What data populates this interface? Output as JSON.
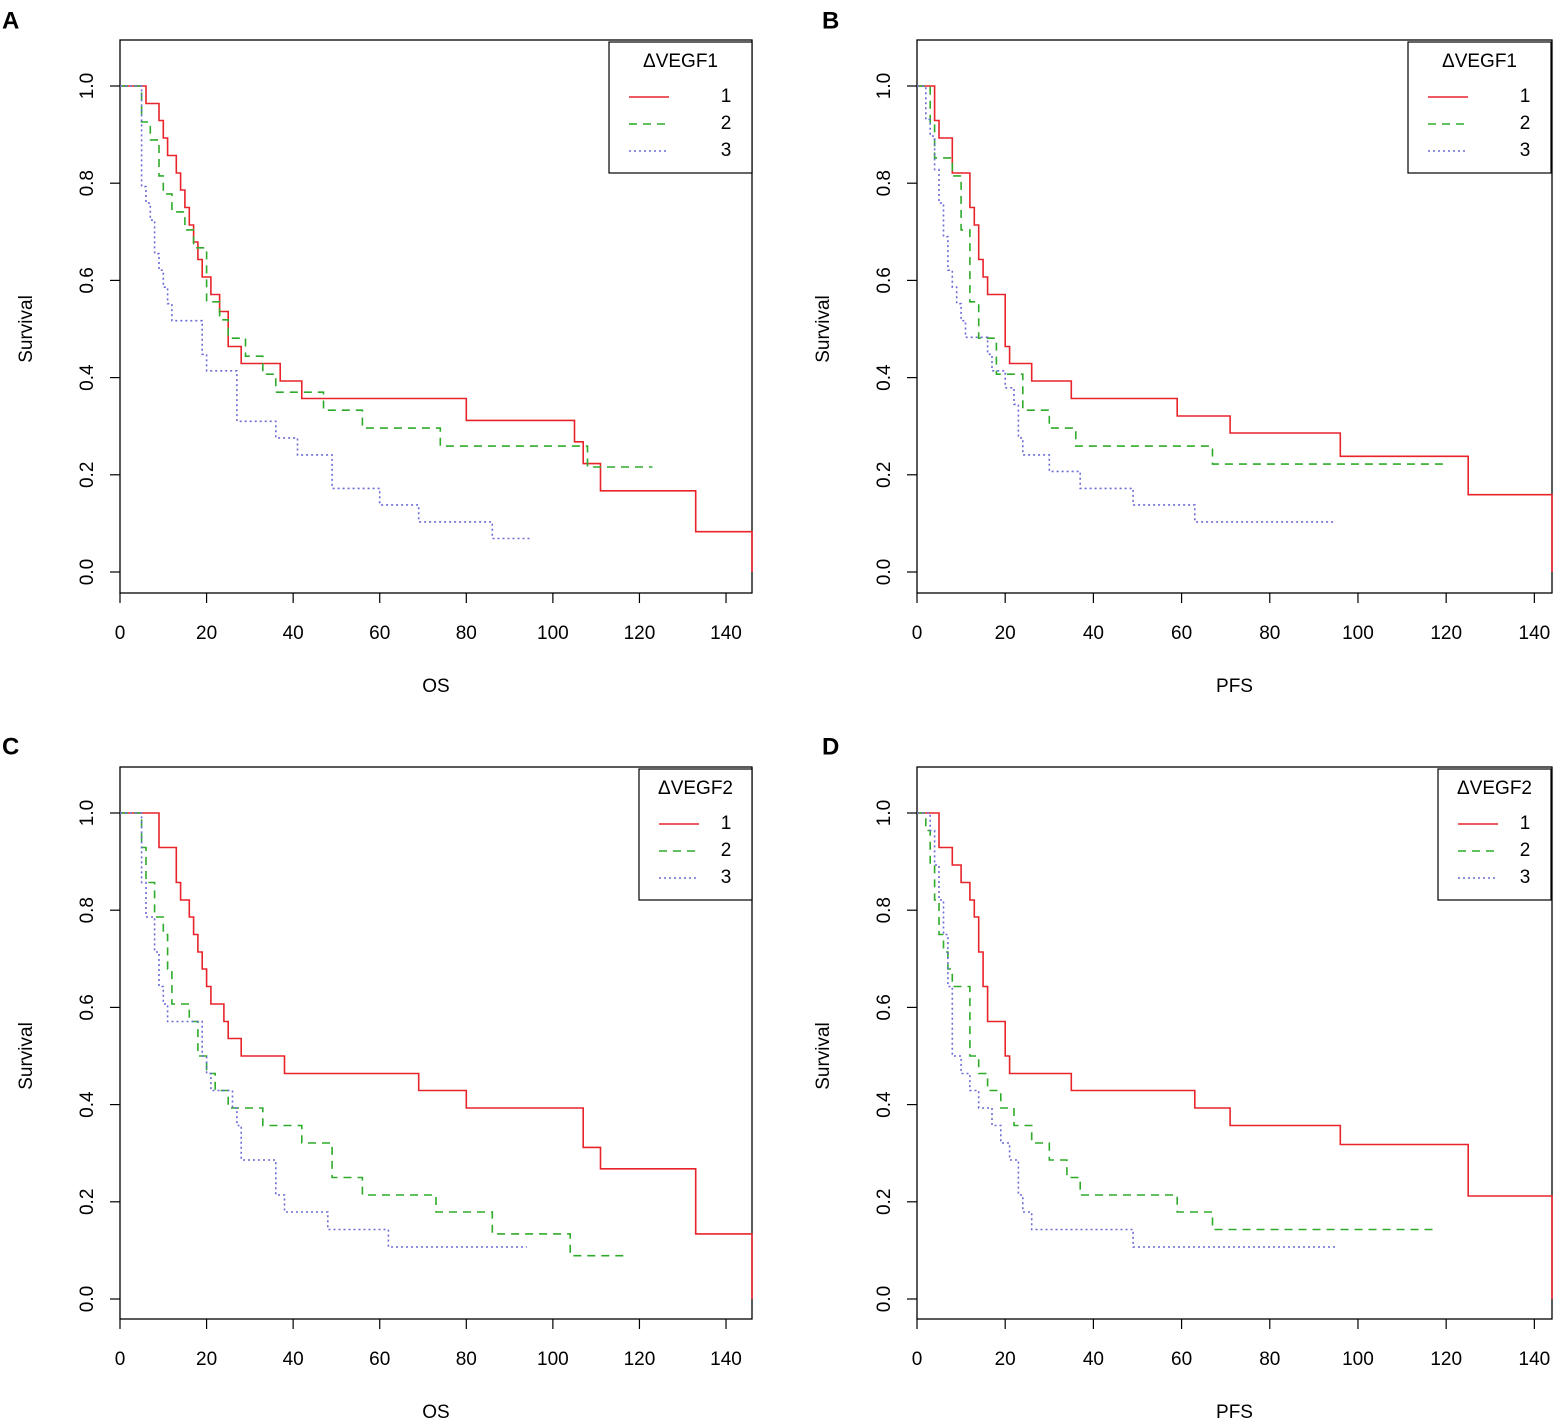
{
  "figure": {
    "legend_placement": "top-right",
    "colors": {
      "series1": "#e8242a",
      "series2": "#2eab2a",
      "series3": "#6b6bd6",
      "axis": "#000000"
    },
    "line_styles": {
      "series1": "solid",
      "series2": "dashed",
      "series3": "dotted"
    }
  },
  "chart_data": [
    {
      "panel": "A",
      "type": "line",
      "step": true,
      "xlabel": "OS",
      "ylabel": "Survival",
      "xlim": [
        0,
        146
      ],
      "ylim": [
        0,
        1.0
      ],
      "xticks": [
        "0",
        "20",
        "40",
        "60",
        "80",
        "100",
        "120",
        "140"
      ],
      "yticks": [
        "0.0",
        "0.2",
        "0.4",
        "0.6",
        "0.8",
        "1.0"
      ],
      "legend_title": "ΔVEGF1",
      "series": [
        {
          "name": "1",
          "x": [
            0,
            6,
            9,
            10,
            11,
            13,
            14,
            15,
            16,
            17,
            18,
            19,
            21,
            23,
            25,
            28,
            37,
            42,
            80,
            105,
            107,
            111,
            133,
            146
          ],
          "y": [
            1.0,
            0.964,
            0.929,
            0.893,
            0.857,
            0.821,
            0.786,
            0.75,
            0.714,
            0.679,
            0.643,
            0.607,
            0.571,
            0.536,
            0.464,
            0.429,
            0.393,
            0.357,
            0.312,
            0.268,
            0.223,
            0.167,
            0.083,
            0.0
          ]
        },
        {
          "name": "2",
          "x": [
            0,
            5,
            7,
            9,
            10,
            12,
            15,
            17,
            20,
            23,
            25,
            29,
            33,
            36,
            47,
            56,
            74,
            108,
            123
          ],
          "y": [
            1.0,
            0.926,
            0.889,
            0.815,
            0.778,
            0.741,
            0.704,
            0.667,
            0.556,
            0.519,
            0.481,
            0.444,
            0.407,
            0.37,
            0.333,
            0.296,
            0.259,
            0.216,
            0.216
          ]
        },
        {
          "name": "3",
          "x": [
            0,
            5,
            6,
            7,
            8,
            9,
            10,
            11,
            12,
            19,
            20,
            27,
            36,
            41,
            49,
            60,
            69,
            86,
            95
          ],
          "y": [
            1.0,
            0.793,
            0.759,
            0.724,
            0.655,
            0.621,
            0.586,
            0.552,
            0.517,
            0.448,
            0.414,
            0.31,
            0.276,
            0.241,
            0.172,
            0.138,
            0.103,
            0.069,
            0.069
          ]
        }
      ]
    },
    {
      "panel": "B",
      "type": "line",
      "step": true,
      "xlabel": "PFS",
      "ylabel": "Survival",
      "xlim": [
        0,
        144
      ],
      "ylim": [
        0,
        1.0
      ],
      "xticks": [
        "0",
        "20",
        "40",
        "60",
        "80",
        "100",
        "120",
        "140"
      ],
      "yticks": [
        "0.0",
        "0.2",
        "0.4",
        "0.6",
        "0.8",
        "1.0"
      ],
      "legend_title": "ΔVEGF1",
      "series": [
        {
          "name": "1",
          "x": [
            0,
            4,
            5,
            8,
            12,
            13,
            14,
            15,
            16,
            20,
            21,
            26,
            35,
            59,
            71,
            96,
            125,
            144
          ],
          "y": [
            1.0,
            0.929,
            0.893,
            0.821,
            0.75,
            0.714,
            0.643,
            0.607,
            0.571,
            0.464,
            0.429,
            0.393,
            0.357,
            0.321,
            0.286,
            0.238,
            0.159,
            0.0
          ]
        },
        {
          "name": "2",
          "x": [
            0,
            3,
            4,
            8,
            10,
            12,
            14,
            18,
            24,
            30,
            36,
            67,
            120
          ],
          "y": [
            1.0,
            0.926,
            0.852,
            0.815,
            0.704,
            0.556,
            0.481,
            0.407,
            0.333,
            0.296,
            0.259,
            0.222,
            0.222
          ]
        },
        {
          "name": "3",
          "x": [
            0,
            2,
            3,
            4,
            5,
            6,
            7,
            8,
            9,
            10,
            11,
            16,
            17,
            20,
            22,
            23,
            24,
            30,
            37,
            49,
            63,
            95
          ],
          "y": [
            1.0,
            0.931,
            0.897,
            0.828,
            0.759,
            0.69,
            0.621,
            0.586,
            0.552,
            0.517,
            0.483,
            0.448,
            0.414,
            0.379,
            0.345,
            0.276,
            0.241,
            0.207,
            0.172,
            0.138,
            0.103,
            0.103
          ]
        }
      ]
    },
    {
      "panel": "C",
      "type": "line",
      "step": true,
      "xlabel": "OS",
      "ylabel": "Survival",
      "xlim": [
        0,
        146
      ],
      "ylim": [
        0,
        1.0
      ],
      "xticks": [
        "0",
        "20",
        "40",
        "60",
        "80",
        "100",
        "120",
        "140"
      ],
      "yticks": [
        "0.0",
        "0.2",
        "0.4",
        "0.6",
        "0.8",
        "1.0"
      ],
      "legend_title": "ΔVEGF2",
      "series": [
        {
          "name": "1",
          "x": [
            0,
            9,
            13,
            14,
            16,
            17,
            18,
            19,
            20,
            21,
            24,
            25,
            28,
            38,
            69,
            80,
            107,
            111,
            133,
            146
          ],
          "y": [
            1.0,
            0.929,
            0.857,
            0.821,
            0.786,
            0.75,
            0.714,
            0.679,
            0.643,
            0.607,
            0.571,
            0.536,
            0.5,
            0.464,
            0.429,
            0.393,
            0.312,
            0.268,
            0.134,
            0.0
          ]
        },
        {
          "name": "2",
          "x": [
            0,
            5,
            6,
            8,
            10,
            11,
            12,
            16,
            18,
            20,
            22,
            25,
            33,
            42,
            49,
            56,
            73,
            86,
            104,
            117
          ],
          "y": [
            1.0,
            0.929,
            0.857,
            0.786,
            0.75,
            0.679,
            0.607,
            0.571,
            0.5,
            0.464,
            0.429,
            0.393,
            0.357,
            0.321,
            0.25,
            0.214,
            0.179,
            0.134,
            0.089,
            0.089
          ]
        },
        {
          "name": "3",
          "x": [
            0,
            5,
            6,
            8,
            9,
            10,
            11,
            19,
            20,
            21,
            26,
            27,
            28,
            36,
            38,
            48,
            62,
            94
          ],
          "y": [
            1.0,
            0.857,
            0.786,
            0.714,
            0.643,
            0.607,
            0.571,
            0.5,
            0.464,
            0.429,
            0.393,
            0.357,
            0.286,
            0.214,
            0.179,
            0.143,
            0.107,
            0.107
          ]
        }
      ]
    },
    {
      "panel": "D",
      "type": "line",
      "step": true,
      "xlabel": "PFS",
      "ylabel": "Survival",
      "xlim": [
        0,
        144
      ],
      "ylim": [
        0,
        1.0
      ],
      "xticks": [
        "0",
        "20",
        "40",
        "60",
        "80",
        "100",
        "120",
        "140"
      ],
      "yticks": [
        "0.0",
        "0.2",
        "0.4",
        "0.6",
        "0.8",
        "1.0"
      ],
      "legend_title": "ΔVEGF2",
      "series": [
        {
          "name": "1",
          "x": [
            0,
            5,
            8,
            10,
            12,
            13,
            14,
            15,
            16,
            20,
            21,
            35,
            63,
            71,
            96,
            125,
            144
          ],
          "y": [
            1.0,
            0.929,
            0.893,
            0.857,
            0.821,
            0.786,
            0.714,
            0.643,
            0.571,
            0.5,
            0.464,
            0.429,
            0.393,
            0.357,
            0.318,
            0.212,
            0.0
          ]
        },
        {
          "name": "2",
          "x": [
            0,
            2,
            3,
            4,
            5,
            6,
            7,
            8,
            12,
            14,
            16,
            19,
            22,
            26,
            30,
            34,
            37,
            59,
            67,
            117
          ],
          "y": [
            1.0,
            0.964,
            0.893,
            0.821,
            0.75,
            0.714,
            0.679,
            0.643,
            0.5,
            0.464,
            0.429,
            0.393,
            0.357,
            0.321,
            0.286,
            0.25,
            0.214,
            0.179,
            0.143,
            0.143
          ]
        },
        {
          "name": "3",
          "x": [
            0,
            3,
            4,
            5,
            6,
            7,
            8,
            10,
            12,
            14,
            17,
            19,
            21,
            23,
            24,
            26,
            49,
            95
          ],
          "y": [
            1.0,
            0.964,
            0.893,
            0.821,
            0.75,
            0.643,
            0.5,
            0.464,
            0.429,
            0.393,
            0.357,
            0.321,
            0.286,
            0.214,
            0.179,
            0.143,
            0.107,
            0.107
          ]
        }
      ]
    }
  ]
}
